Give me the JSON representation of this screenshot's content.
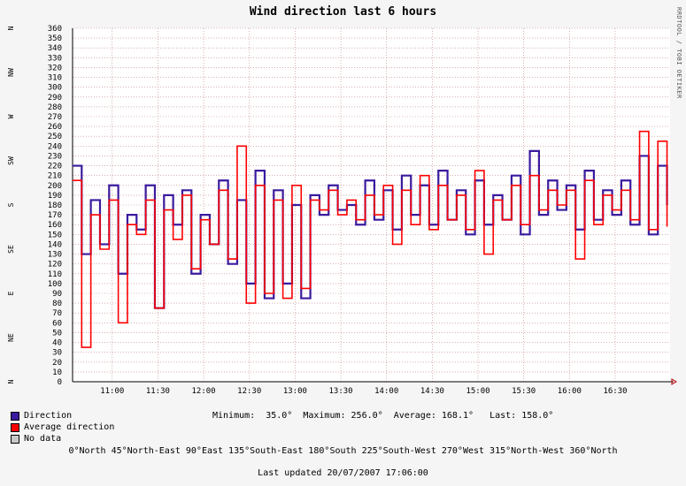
{
  "chart_data": {
    "type": "line",
    "title": "Wind direction last 6 hours",
    "ylim": [
      0,
      360
    ],
    "y_ticks": [
      0,
      10,
      20,
      30,
      40,
      50,
      60,
      70,
      80,
      90,
      100,
      110,
      120,
      130,
      140,
      150,
      160,
      170,
      180,
      190,
      200,
      210,
      220,
      230,
      240,
      250,
      260,
      270,
      280,
      290,
      300,
      310,
      320,
      330,
      340,
      350,
      360
    ],
    "compass_labels": [
      {
        "label": "N",
        "value": 0
      },
      {
        "label": "NE",
        "value": 45
      },
      {
        "label": "E",
        "value": 90
      },
      {
        "label": "SE",
        "value": 135
      },
      {
        "label": "S",
        "value": 180
      },
      {
        "label": "SW",
        "value": 225
      },
      {
        "label": "W",
        "value": 270
      },
      {
        "label": "NW",
        "value": 315
      },
      {
        "label": "N",
        "value": 360
      }
    ],
    "x_tick_labels": [
      "11:00",
      "11:30",
      "12:00",
      "12:30",
      "13:00",
      "13:30",
      "14:00",
      "14:30",
      "15:00",
      "15:30",
      "16:00",
      "16:30"
    ],
    "x_range_hours": [
      10.567,
      17.1
    ],
    "grid": true,
    "legend_position": "bottom-left",
    "series": [
      {
        "name": "Direction",
        "color": "#3A1A9E",
        "x": [
          "10:34",
          "10:40",
          "10:46",
          "10:52",
          "10:58",
          "11:04",
          "11:10",
          "11:16",
          "11:22",
          "11:28",
          "11:34",
          "11:40",
          "11:46",
          "11:52",
          "11:58",
          "12:04",
          "12:10",
          "12:16",
          "12:22",
          "12:28",
          "12:34",
          "12:40",
          "12:46",
          "12:52",
          "12:58",
          "13:04",
          "13:10",
          "13:16",
          "13:22",
          "13:28",
          "13:34",
          "13:40",
          "13:46",
          "13:52",
          "13:58",
          "14:04",
          "14:10",
          "14:16",
          "14:22",
          "14:28",
          "14:34",
          "14:40",
          "14:46",
          "14:52",
          "14:58",
          "15:04",
          "15:10",
          "15:16",
          "15:22",
          "15:28",
          "15:34",
          "15:40",
          "15:46",
          "15:52",
          "15:58",
          "16:04",
          "16:10",
          "16:16",
          "16:22",
          "16:28",
          "16:34",
          "16:40",
          "16:46",
          "16:52",
          "16:58",
          "17:04"
        ],
        "values": [
          220,
          130,
          185,
          140,
          200,
          110,
          170,
          155,
          200,
          75,
          190,
          160,
          195,
          110,
          170,
          140,
          205,
          120,
          185,
          100,
          215,
          85,
          195,
          100,
          180,
          85,
          190,
          170,
          200,
          175,
          180,
          160,
          205,
          165,
          195,
          155,
          210,
          170,
          200,
          160,
          215,
          165,
          195,
          150,
          205,
          160,
          190,
          165,
          210,
          150,
          235,
          170,
          205,
          175,
          200,
          155,
          215,
          165,
          195,
          170,
          205,
          160,
          230,
          150,
          220,
          180
        ]
      },
      {
        "name": "Average direction",
        "color": "#FF0000",
        "x": [
          "10:34",
          "10:40",
          "10:46",
          "10:52",
          "10:58",
          "11:04",
          "11:10",
          "11:16",
          "11:22",
          "11:28",
          "11:34",
          "11:40",
          "11:46",
          "11:52",
          "11:58",
          "12:04",
          "12:10",
          "12:16",
          "12:22",
          "12:28",
          "12:34",
          "12:40",
          "12:46",
          "12:52",
          "12:58",
          "13:04",
          "13:10",
          "13:16",
          "13:22",
          "13:28",
          "13:34",
          "13:40",
          "13:46",
          "13:52",
          "13:58",
          "14:04",
          "14:10",
          "14:16",
          "14:22",
          "14:28",
          "14:34",
          "14:40",
          "14:46",
          "14:52",
          "14:58",
          "15:04",
          "15:10",
          "15:16",
          "15:22",
          "15:28",
          "15:34",
          "15:40",
          "15:46",
          "15:52",
          "15:58",
          "16:04",
          "16:10",
          "16:16",
          "16:22",
          "16:28",
          "16:34",
          "16:40",
          "16:46",
          "16:52",
          "16:58",
          "17:04"
        ],
        "values": [
          205,
          35,
          170,
          135,
          185,
          60,
          160,
          150,
          185,
          75,
          175,
          145,
          190,
          115,
          165,
          140,
          195,
          125,
          240,
          80,
          200,
          90,
          185,
          85,
          200,
          95,
          185,
          175,
          195,
          170,
          185,
          165,
          190,
          170,
          200,
          140,
          195,
          160,
          210,
          155,
          200,
          165,
          190,
          155,
          215,
          130,
          185,
          165,
          200,
          160,
          210,
          175,
          195,
          180,
          195,
          125,
          205,
          160,
          190,
          175,
          195,
          165,
          255,
          155,
          245,
          158
        ]
      },
      {
        "name": "No data",
        "color": "#C8C8C8",
        "x": [],
        "values": []
      }
    ],
    "stats": {
      "minimum": "35.0°",
      "maximum": "256.0°",
      "average": "168.1°",
      "last": "158.0°"
    }
  },
  "labels": {
    "watermark": "RRDTOOL / TOBI OETIKER",
    "stats_line": "Minimum:  35.0°  Maximum: 256.0°  Average: 168.1°   Last: 158.0°",
    "direction_key": "0°North 45°North-East 90°East 135°South-East 180°South 225°South-West 270°West 315°North-West 360°North",
    "updated": "Last updated 20/07/2007 17:06:00"
  }
}
